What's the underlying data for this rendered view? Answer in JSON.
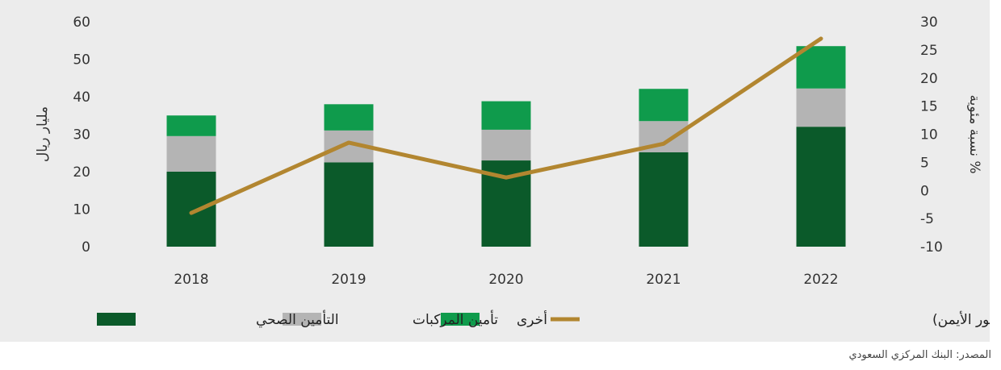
{
  "chart_data": {
    "type": "bar",
    "stacked": true,
    "categories": [
      "2018",
      "2019",
      "2020",
      "2021",
      "2022"
    ],
    "series": [
      {
        "name": "التأمين الصحي",
        "values": [
          20,
          22.5,
          23,
          25.2,
          32
        ],
        "color": "#0b5a2a"
      },
      {
        "name": "تأمين المركبات",
        "values": [
          9.5,
          8.5,
          8.2,
          8.3,
          10.2
        ],
        "color": "#b4b4b4"
      },
      {
        "name": "أخرى",
        "values": [
          5.5,
          7,
          7.6,
          8.6,
          11.3
        ],
        "color": "#0f9b4c"
      }
    ],
    "line_series": {
      "name": "معدل نمو إجمالي الأقساط المكتتبة (المحور الأيمن)",
      "values": [
        -4,
        8.5,
        2.3,
        8.3,
        27
      ],
      "color": "#b28630",
      "axis": "right"
    },
    "ylabel": "مليار ريال",
    "ylabel_right": "نسبة مئوية %",
    "ylim": [
      0,
      60
    ],
    "yticks": [
      "0",
      "10",
      "20",
      "30",
      "40",
      "50",
      "60"
    ],
    "ylim_right": [
      -10,
      30
    ],
    "yticks_right": [
      "-10",
      "-5",
      "0",
      "5",
      "10",
      "15",
      "20",
      "25",
      "30"
    ],
    "grid": false,
    "legend_position": "bottom"
  },
  "source_note": "المصدر: البنك المركزي السعودي"
}
